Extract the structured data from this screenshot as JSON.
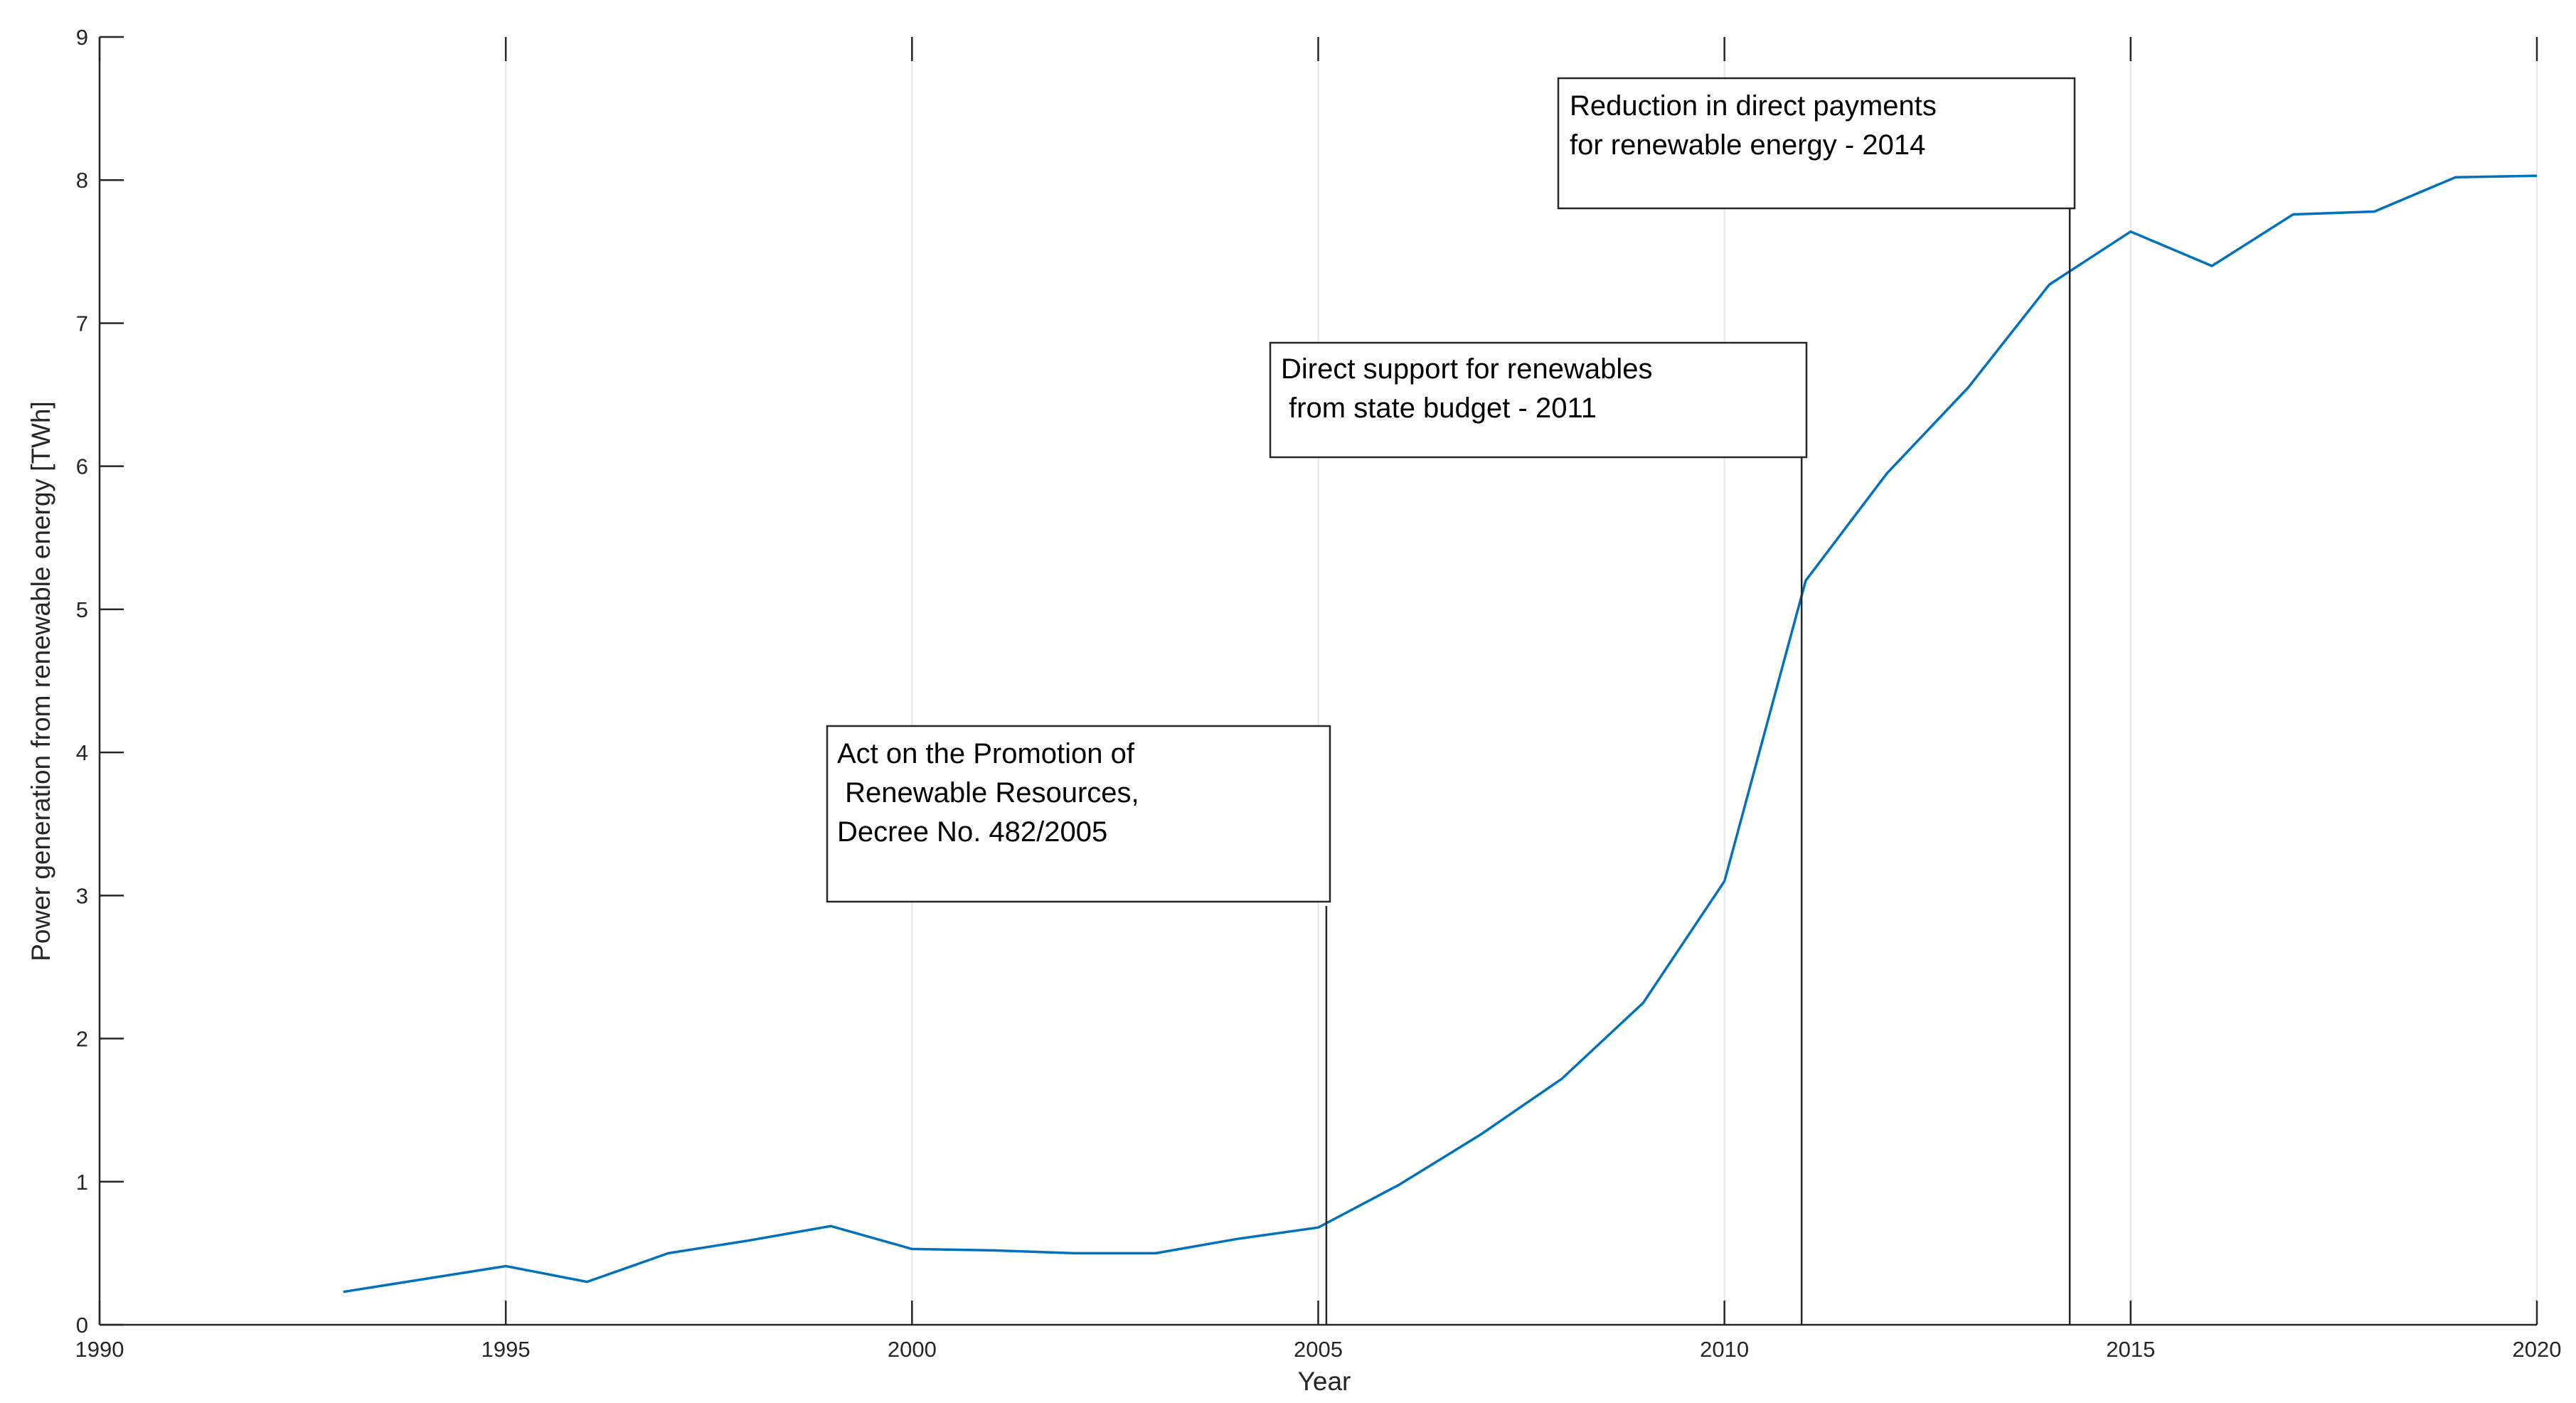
{
  "chart_data": {
    "type": "line",
    "title": "",
    "xlabel": "Year",
    "ylabel": "Power generation from renewable energy [TWh]",
    "xlim": [
      1990,
      2020
    ],
    "ylim": [
      0,
      9
    ],
    "xticks": [
      1990,
      1995,
      2000,
      2005,
      2010,
      2015,
      2020
    ],
    "yticks": [
      0,
      1,
      2,
      3,
      4,
      5,
      6,
      7,
      8,
      9
    ],
    "grid": "vertical",
    "legend": "none",
    "series": [
      {
        "color": "#0072bd",
        "x": [
          1993,
          1994,
          1995,
          1996,
          1997,
          1998,
          1999,
          2000,
          2001,
          2002,
          2003,
          2004,
          2005,
          2006,
          2007,
          2008,
          2009,
          2010,
          2011,
          2012,
          2013,
          2014,
          2015,
          2016,
          2017,
          2018,
          2019,
          2020
        ],
        "y": [
          0.23,
          0.32,
          0.41,
          0.3,
          0.5,
          0.59,
          0.69,
          0.53,
          0.52,
          0.5,
          0.5,
          0.6,
          0.68,
          0.98,
          1.33,
          1.72,
          2.25,
          3.1,
          5.2,
          5.95,
          6.55,
          7.27,
          7.64,
          7.4,
          7.76,
          7.78,
          8.02,
          8.03
        ]
      }
    ],
    "annotations": [
      {
        "lines": [
          "Act on the Promotion of",
          " Renewable Resources,",
          "Decree No. 482/2005"
        ],
        "year": 2005.1
      },
      {
        "lines": [
          "Direct support for renewables",
          " from state budget - 2011"
        ],
        "year": 2010.95
      },
      {
        "lines": [
          "Reduction in direct payments",
          "for renewable energy - 2014"
        ],
        "year": 2014.25
      }
    ]
  }
}
